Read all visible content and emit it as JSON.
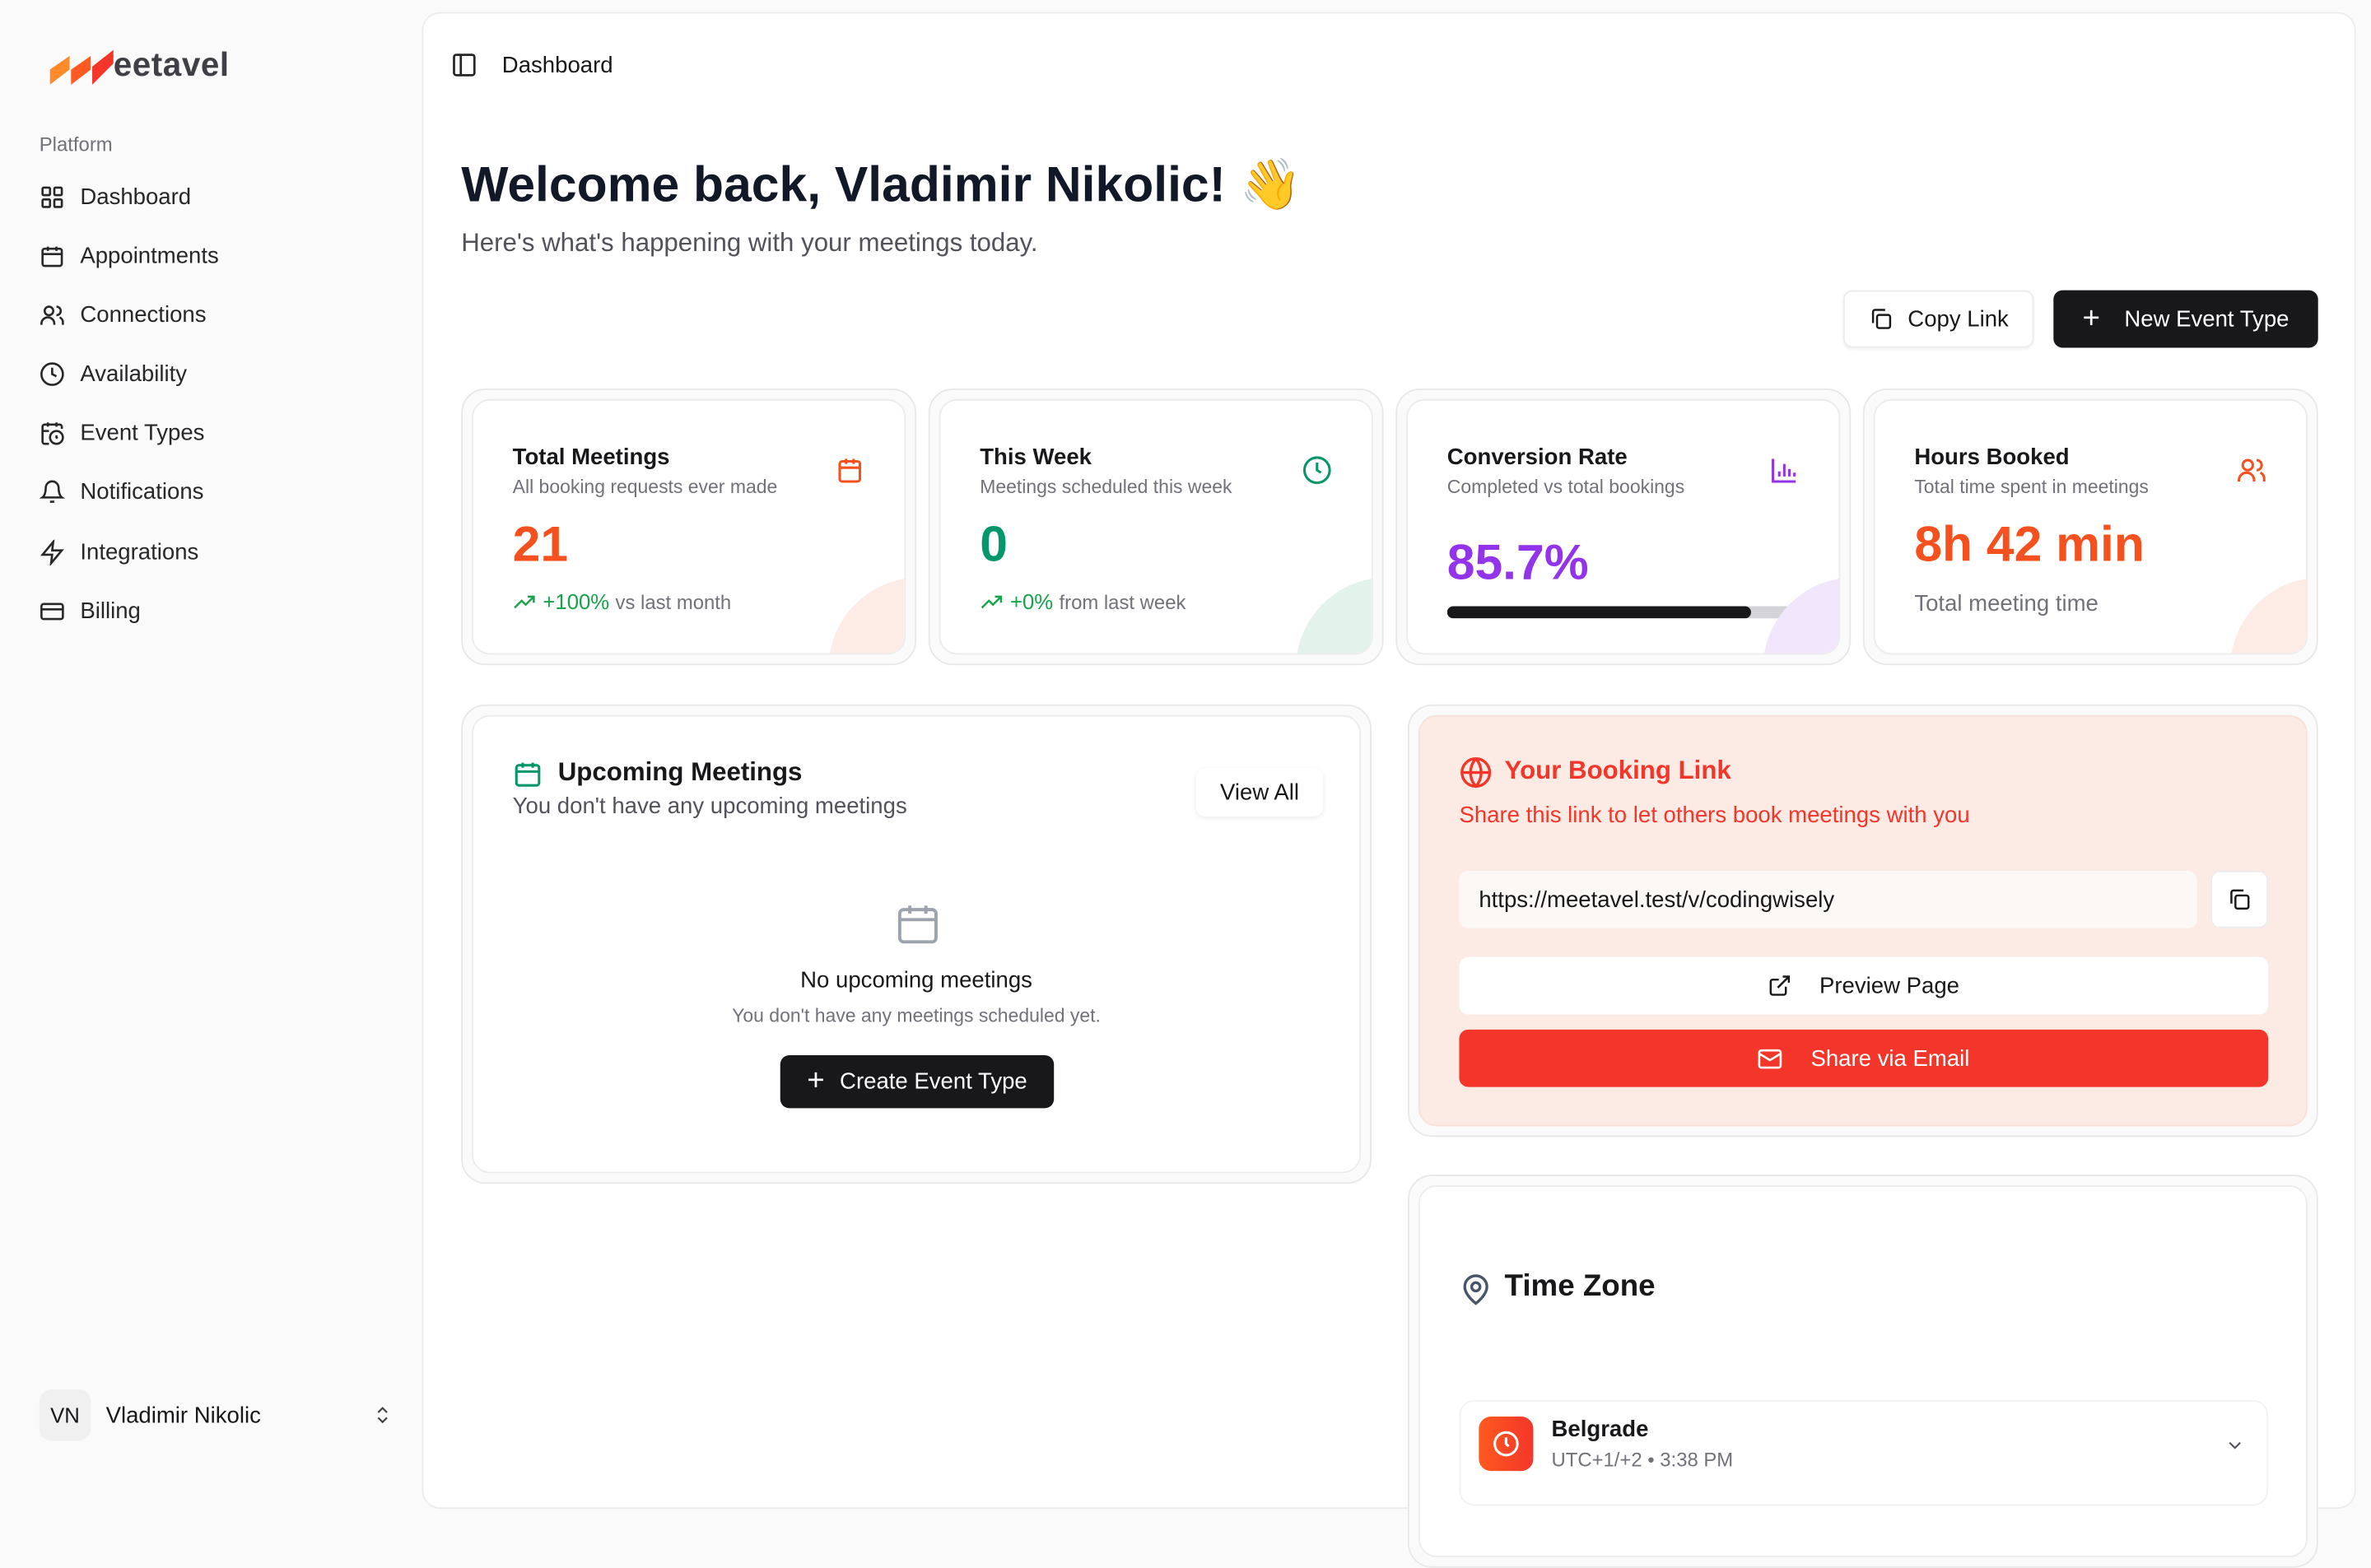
{
  "sidebar": {
    "logo_text": "Meetavel",
    "section": "Platform",
    "items": [
      {
        "label": "Dashboard",
        "icon": "layout-grid-icon"
      },
      {
        "label": "Appointments",
        "icon": "calendar-icon"
      },
      {
        "label": "Connections",
        "icon": "users-icon"
      },
      {
        "label": "Availability",
        "icon": "clock-icon"
      },
      {
        "label": "Event Types",
        "icon": "calendar-clock-icon"
      },
      {
        "label": "Notifications",
        "icon": "bell-icon"
      },
      {
        "label": "Integrations",
        "icon": "zap-icon"
      },
      {
        "label": "Billing",
        "icon": "credit-card-icon"
      }
    ],
    "user": {
      "initials": "VN",
      "name": "Vladimir Nikolic"
    }
  },
  "header": {
    "breadcrumb": "Dashboard"
  },
  "welcome": {
    "title": "Welcome back, Vladimir Nikolic! 👋",
    "subtitle": "Here's what's happening with your meetings today."
  },
  "actions": {
    "copy_link": "Copy Link",
    "new_event_type": "New Event Type"
  },
  "stats": [
    {
      "title": "Total Meetings",
      "subtitle": "All booking requests ever made",
      "value": "21",
      "change": "+100%",
      "change_label": "vs last month",
      "color": "#f4511e"
    },
    {
      "title": "This Week",
      "subtitle": "Meetings scheduled this week",
      "value": "0",
      "change": "+0%",
      "change_label": "from last week",
      "color": "#059669"
    },
    {
      "title": "Conversion Rate",
      "subtitle": "Completed vs total bookings",
      "value": "85.7%",
      "progress": 85.7,
      "color": "#9333ea"
    },
    {
      "title": "Hours Booked",
      "subtitle": "Total time spent in meetings",
      "value": "8h 42 min",
      "footer": "Total meeting time",
      "color": "#f4511e"
    }
  ],
  "upcoming": {
    "title": "Upcoming Meetings",
    "subtitle": "You don't have any upcoming meetings",
    "view_all": "View All",
    "empty_title": "No upcoming meetings",
    "empty_text": "You don't have any meetings scheduled yet.",
    "create": "Create Event Type"
  },
  "booking": {
    "title": "Your Booking Link",
    "subtitle": "Share this link to let others book meetings with you",
    "url": "https://meetavel.test/v/codingwisely",
    "preview": "Preview Page",
    "share": "Share via Email",
    "accent": "#f4362a"
  },
  "timezone": {
    "title": "Time Zone",
    "city": "Belgrade",
    "detail": "UTC+1/+2 • 3:38 PM"
  }
}
